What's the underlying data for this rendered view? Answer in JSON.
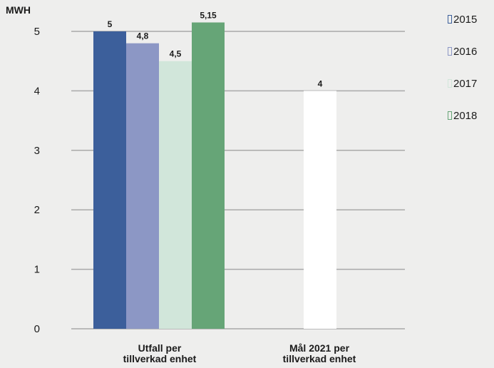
{
  "chart_data": {
    "type": "bar",
    "ylabel": "MWH",
    "ylim": [
      0,
      5
    ],
    "yticks": [
      "0",
      "1",
      "2",
      "3",
      "4",
      "5"
    ],
    "categories": [
      "Utfall per tillverkad enhet",
      "Mål 2021 per tillverkad enhet"
    ],
    "category_lines": [
      [
        "Utfall per",
        "tillverkad enhet"
      ],
      [
        "Mål 2021 per",
        "tillverkad enhet"
      ]
    ],
    "series": [
      {
        "name": "2015",
        "color": "#3c5f9b",
        "values": [
          5,
          null
        ],
        "labels": [
          "5",
          ""
        ]
      },
      {
        "name": "2016",
        "color": "#8c97c5",
        "values": [
          4.8,
          null
        ],
        "labels": [
          "4,8",
          ""
        ]
      },
      {
        "name": "2017",
        "color": "#d1e6da",
        "values": [
          4.5,
          null
        ],
        "labels": [
          "4,5",
          ""
        ]
      },
      {
        "name": "2018",
        "color": "#66a577",
        "values": [
          5.15,
          null
        ],
        "labels": [
          "5,15",
          ""
        ]
      }
    ],
    "target_bar": {
      "category": 1,
      "value": 4,
      "label": "4",
      "color": "#ffffff"
    },
    "grid": true,
    "legend_position": "top-right"
  }
}
